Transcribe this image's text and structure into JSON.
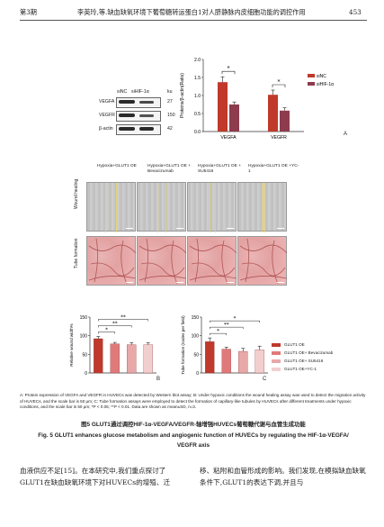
{
  "header": {
    "issue": "第3期",
    "title": "李英玲,等.缺血缺氧环境下葡萄糖转运蛋白1对人脐静脉内皮细胞功能的调控作用",
    "page": "453"
  },
  "western_blot": {
    "col_labels": [
      "siNC",
      "siHIF-1α",
      "ku"
    ],
    "rows": [
      {
        "name": "VEGFA",
        "kda": "27"
      },
      {
        "name": "VEGFR",
        "kda": "150"
      },
      {
        "name": "β-actin",
        "kda": "42"
      }
    ]
  },
  "panel_labels": {
    "a": "A",
    "b": "B",
    "c": "C"
  },
  "chart_data": [
    {
      "type": "bar",
      "title": "",
      "ylabel": "Proteins/β-actin(Ratio)",
      "xlabel": "",
      "categories": [
        "VEGFA",
        "VEGFR"
      ],
      "ylim": [
        0,
        2.0
      ],
      "yticks": [
        "0.0",
        "0.5",
        "1.0",
        "1.5",
        "2.0"
      ],
      "series": [
        {
          "name": "siNC",
          "values": [
            1.37,
            1.02
          ],
          "errors": [
            0.15,
            0.13
          ],
          "color": "#c0392b"
        },
        {
          "name": "siHIF-1α",
          "values": [
            0.75,
            0.58
          ],
          "errors": [
            0.07,
            0.08
          ],
          "color": "#8e3b4e"
        }
      ],
      "significance": [
        "*",
        "*"
      ],
      "legend": "right"
    },
    {
      "type": "bar",
      "title": "",
      "ylabel": "Relative wound width%",
      "xlabel": "",
      "ylim": [
        0,
        150
      ],
      "yticks": [
        "0",
        "50",
        "100",
        "150"
      ],
      "categories": [
        "GLUT1 OE",
        "GLUT1 OE+ Bevacizumab",
        "GLUT1 OE+ SU5416",
        "GLUT1 OE+YC-1"
      ],
      "values": [
        92,
        78,
        76,
        76
      ],
      "errors": [
        6,
        4,
        5,
        5
      ],
      "colors": [
        "#c0392b",
        "#e07a7a",
        "#e8a8a8",
        "#f2cfcf"
      ],
      "significance": [
        "*",
        "**",
        "**"
      ]
    },
    {
      "type": "bar",
      "title": "",
      "ylabel": "Tube formation (nodes per field)",
      "xlabel": "",
      "ylim": [
        0,
        150
      ],
      "yticks": [
        "0",
        "50",
        "100",
        "150"
      ],
      "categories": [
        "GLUT1 OE",
        "GLUT1 OE+ Bevacizumab",
        "GLUT1 OE+ SU5416",
        "GLUT1 OE+YC-1"
      ],
      "values": [
        84,
        64,
        58,
        62
      ],
      "errors": [
        10,
        5,
        8,
        10
      ],
      "colors": [
        "#c0392b",
        "#e07a7a",
        "#e8a8a8",
        "#f2cfcf"
      ],
      "significance": [
        "*",
        "**",
        "*"
      ],
      "legend": "right"
    }
  ],
  "micrographs": {
    "columns": [
      "Hypoxia+GLUT1 OE",
      "Hypoxia+GLUT1 OE + Bevacizumab",
      "Hypoxia+GLUT1 OE + SU5416",
      "Hypoxia+GLUT1 OE +YC-1"
    ],
    "rows": [
      "Wound healing",
      "Tube formation"
    ]
  },
  "legend_bc": [
    "GLUT1 OE",
    "GLUT1 OE+ Bevacizumab",
    "GLUT1 OE+ SU5416",
    "GLUT1 OE+YC-1"
  ],
  "caption_en_note": "A: Protein expression of VEGFA and VEGFR in HUVECs was detected by Western blot assay; B: Under hypoxic conditions the wound healing assay was used to detect the migration activity of HUVECs, and the scale bar is 50 μm; C: Tube formation assays were employed to detect the formation of capillary-like tubules by HUVECs after different treatments under hypoxic conditions, and the scale bar is 50 μm; *P < 0.05; **P < 0.01. Data are shown as mean±SD, n=3.",
  "figure_title_cn": "图5 GLUT1通过调控HIF-1α-VEGFA/VEGFR-轴增强HUVECs葡萄糖代谢与血管生成功能",
  "figure_title_en": "Fig. 5 GLUT1 enhances glucose metabolism and angiogenic function of HUVECs by regulating the HIF-1α-VEGFA/ VEGFR axis",
  "body": {
    "left": "血液供应不足[15]。在本研究中,我们重点探讨了GLUT1在缺血缺氧环境下对HUVECs的增殖、迁",
    "right": "移、粘附和血管形成的影响。我们发现,在模拟缺血缺氧条件下,GLUT1的表达下调,并且与"
  }
}
